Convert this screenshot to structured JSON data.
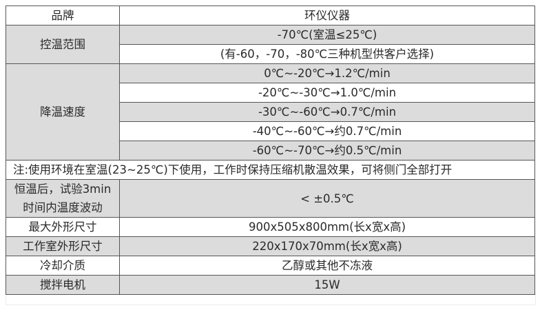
{
  "rows": {
    "brand": {
      "label": "品牌",
      "value": "环仪仪器"
    },
    "temp_range": {
      "label": "控温范围",
      "values": [
        "-70℃(室温≤25℃)",
        "(有-60，-70，-80℃三种机型供客户选择)"
      ]
    },
    "cooling_rate": {
      "label": "降温速度",
      "values": [
        "0℃~-20℃→1.2℃/min",
        "-20℃~-30℃→1.0℃/min",
        "-30℃~-60℃→0.7℃/min",
        "-40℃~-60℃→约0.7℃/min",
        "-60℃~-70℃→约0.5℃/min"
      ]
    },
    "note": "注:使用环境在室温(23~25℃)下使用，工作时保持压缩机散温效果，可将侧门全部打开",
    "fluctuation": {
      "label_line1": "恒温后，试验3min",
      "label_line2": "时间内温度波动",
      "value": "< ±0.5℃"
    },
    "max_size": {
      "label": "最大外形尺寸",
      "value": "900x505x800mm(长x宽x高)"
    },
    "chamber_size": {
      "label": "工作室外形尺寸",
      "value": "220x170x70mm(长x宽x高)"
    },
    "medium": {
      "label": "冷却介质",
      "value": "乙醇或其他不冻液"
    },
    "motor": {
      "label": "搅拌电机",
      "value": "15W"
    }
  }
}
